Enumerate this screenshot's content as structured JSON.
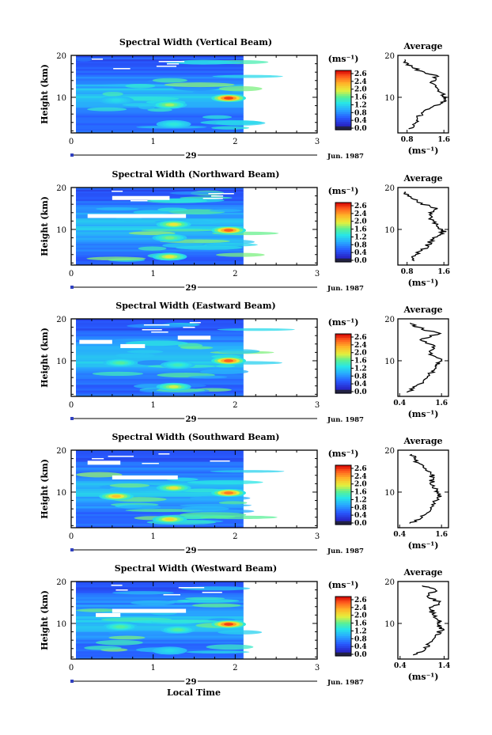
{
  "figure": {
    "xlabel": "Local Time",
    "month_label": "Jun. 1987",
    "day_label": "29"
  },
  "chart_data": [
    {
      "type": "heatmap",
      "title": "Spectral Width (Vertical Beam)",
      "ylabel": "Height (km)",
      "x_ticks": [
        "0",
        "1",
        "2",
        "3"
      ],
      "y_ticks": [
        "20",
        "10"
      ],
      "xlim": [
        0,
        3
      ],
      "ylim": [
        1.5,
        20
      ],
      "data_xlim": [
        0,
        2.1
      ],
      "colorbar": {
        "label": "(ms⁻¹)",
        "ticks": [
          "2.6",
          "2.4",
          "2.0",
          "1.6",
          "1.2",
          "0.8",
          "0.4",
          "0.0"
        ],
        "range": [
          0.0,
          2.8
        ]
      },
      "features": [
        {
          "x": 1.92,
          "y": 9.8,
          "value": 2.6
        },
        {
          "x": 1.2,
          "y": 8.2,
          "value": 1.7
        },
        {
          "x": 1.25,
          "y": 3.6,
          "value": 1.3
        },
        {
          "x": 0.55,
          "y": 9.3,
          "value": 1.2
        }
      ],
      "gaps": [],
      "average": {
        "title": "Average",
        "xlabel": "(ms⁻¹)",
        "x_ticks": [
          "0.8",
          "1.6"
        ],
        "xlim": [
          0.6,
          1.7
        ],
        "y_ticks": [
          "20",
          "10"
        ],
        "height": [
          2.5,
          4,
          5.5,
          7,
          8.5,
          9.5,
          10.5,
          12,
          13.5,
          15,
          16.5,
          18,
          19
        ],
        "value": [
          0.9,
          1.0,
          1.05,
          1.25,
          1.55,
          1.65,
          1.6,
          1.4,
          1.35,
          1.45,
          1.05,
          0.8,
          0.75
        ]
      }
    },
    {
      "type": "heatmap",
      "title": "Spectral Width (Northward Beam)",
      "ylabel": "Height (km)",
      "x_ticks": [
        "0",
        "1",
        "2",
        "3"
      ],
      "y_ticks": [
        "20",
        "10"
      ],
      "xlim": [
        0,
        3
      ],
      "ylim": [
        1.5,
        20
      ],
      "data_xlim": [
        0,
        2.1
      ],
      "colorbar": {
        "label": "(ms⁻¹)",
        "ticks": [
          "2.6",
          "2.4",
          "2.0",
          "1.6",
          "1.2",
          "0.8",
          "0.4",
          "0.0"
        ],
        "range": [
          0.0,
          2.8
        ]
      },
      "features": [
        {
          "x": 1.92,
          "y": 9.8,
          "value": 2.5
        },
        {
          "x": 1.25,
          "y": 11.2,
          "value": 1.9
        },
        {
          "x": 1.2,
          "y": 3.5,
          "value": 1.9
        },
        {
          "x": 1.2,
          "y": 8.0,
          "value": 1.6
        }
      ],
      "gaps": [
        {
          "x0": 0.2,
          "x1": 1.4,
          "y": 13.2
        },
        {
          "x0": 0.5,
          "x1": 1.2,
          "y": 17.5
        }
      ],
      "average": {
        "title": "Average",
        "xlabel": "(ms⁻¹)",
        "x_ticks": [
          "0.8",
          "1.6"
        ],
        "xlim": [
          0.6,
          1.7
        ],
        "y_ticks": [
          "20",
          "10"
        ],
        "height": [
          2.5,
          4,
          5.5,
          7,
          8.5,
          9.5,
          10.5,
          12,
          13.5,
          15,
          16.5,
          18,
          19
        ],
        "value": [
          0.9,
          1.0,
          1.2,
          1.3,
          1.45,
          1.6,
          1.5,
          1.35,
          1.3,
          1.4,
          1.05,
          0.85,
          0.75
        ]
      }
    },
    {
      "type": "heatmap",
      "title": "Spectral Width (Eastward Beam)",
      "ylabel": "Height (km)",
      "x_ticks": [
        "0",
        "1",
        "2",
        "3"
      ],
      "y_ticks": [
        "20",
        "10"
      ],
      "xlim": [
        0,
        3
      ],
      "ylim": [
        1.5,
        20
      ],
      "data_xlim": [
        0,
        2.1
      ],
      "colorbar": {
        "label": "(ms⁻¹)",
        "ticks": [
          "2.6",
          "2.4",
          "2.0",
          "1.6",
          "1.2",
          "0.8",
          "0.4",
          "0.0"
        ],
        "range": [
          0.0,
          2.8
        ]
      },
      "features": [
        {
          "x": 1.92,
          "y": 10.0,
          "value": 2.5
        },
        {
          "x": 1.25,
          "y": 3.8,
          "value": 1.8
        },
        {
          "x": 0.6,
          "y": 9.5,
          "value": 1.5
        },
        {
          "x": 1.3,
          "y": 9.0,
          "value": 1.4
        }
      ],
      "gaps": [
        {
          "x0": 0.6,
          "x1": 0.9,
          "y": 13.5
        },
        {
          "x0": 1.3,
          "x1": 1.7,
          "y": 15.5
        },
        {
          "x0": 0.1,
          "x1": 0.5,
          "y": 14.5
        }
      ],
      "average": {
        "title": "Average",
        "xlabel": "(ms⁻¹)",
        "x_ticks": [
          "0.4",
          "1.6"
        ],
        "xlim": [
          0.35,
          1.8
        ],
        "y_ticks": [
          "20",
          "10"
        ],
        "height": [
          2.5,
          4,
          5.5,
          7,
          8.5,
          9.5,
          10.5,
          12,
          13.5,
          15,
          16.5,
          18,
          19
        ],
        "value": [
          0.6,
          0.9,
          1.15,
          1.3,
          1.45,
          1.5,
          1.55,
          1.2,
          1.4,
          1.0,
          1.5,
          0.9,
          0.7
        ]
      }
    },
    {
      "type": "heatmap",
      "title": "Spectral Width (Southward Beam)",
      "ylabel": "Height (km)",
      "x_ticks": [
        "0",
        "1",
        "2",
        "3"
      ],
      "y_ticks": [
        "20",
        "10"
      ],
      "xlim": [
        0,
        3
      ],
      "ylim": [
        1.5,
        20
      ],
      "data_xlim": [
        0,
        2.1
      ],
      "colorbar": {
        "label": "(ms⁻¹)",
        "ticks": [
          "2.6",
          "2.4",
          "2.0",
          "1.6",
          "1.2",
          "0.8",
          "0.4",
          "0.0"
        ],
        "range": [
          0.0,
          2.8
        ]
      },
      "features": [
        {
          "x": 1.92,
          "y": 9.8,
          "value": 2.4
        },
        {
          "x": 0.55,
          "y": 9.0,
          "value": 2.1
        },
        {
          "x": 1.25,
          "y": 11.0,
          "value": 1.9
        },
        {
          "x": 1.2,
          "y": 3.5,
          "value": 2.0
        }
      ],
      "gaps": [
        {
          "x0": 0.5,
          "x1": 1.3,
          "y": 13.5
        },
        {
          "x0": 0.2,
          "x1": 0.6,
          "y": 17.0
        }
      ],
      "average": {
        "title": "Average",
        "xlabel": "(ms⁻¹)",
        "x_ticks": [
          "0.4",
          "1.6"
        ],
        "xlim": [
          0.35,
          1.8
        ],
        "y_ticks": [
          "20",
          "10"
        ],
        "height": [
          2.5,
          4,
          5.5,
          7,
          8.5,
          9.5,
          10.5,
          12,
          13.5,
          15,
          16.5,
          18,
          19
        ],
        "value": [
          0.7,
          1.0,
          1.2,
          1.35,
          1.5,
          1.55,
          1.45,
          1.3,
          1.35,
          1.25,
          1.0,
          0.8,
          0.75
        ]
      }
    },
    {
      "type": "heatmap",
      "title": "Spectral Width (Westward Beam)",
      "ylabel": "Height (km)",
      "x_ticks": [
        "0",
        "1",
        "2",
        "3"
      ],
      "y_ticks": [
        "20",
        "10"
      ],
      "xlim": [
        0,
        3
      ],
      "ylim": [
        1.5,
        20
      ],
      "data_xlim": [
        0,
        2.1
      ],
      "colorbar": {
        "label": "(ms⁻¹)",
        "ticks": [
          "2.6",
          "2.4",
          "2.0",
          "1.6",
          "1.2",
          "0.8",
          "0.4",
          "0.0"
        ],
        "range": [
          0.0,
          2.8
        ]
      },
      "features": [
        {
          "x": 1.92,
          "y": 9.8,
          "value": 2.6
        },
        {
          "x": 1.3,
          "y": 8.5,
          "value": 1.5
        },
        {
          "x": 0.6,
          "y": 9.2,
          "value": 1.5
        },
        {
          "x": 1.2,
          "y": 3.5,
          "value": 1.2
        }
      ],
      "gaps": [
        {
          "x0": 0.5,
          "x1": 1.4,
          "y": 13.0
        },
        {
          "x0": 0.3,
          "x1": 0.6,
          "y": 12.0
        }
      ],
      "average": {
        "title": "Average",
        "xlabel": "(ms⁻¹)",
        "x_ticks": [
          "0.4",
          "1.4"
        ],
        "xlim": [
          0.35,
          1.5
        ],
        "y_ticks": [
          "20",
          "10"
        ],
        "height": [
          2.5,
          4,
          5.5,
          7,
          8.5,
          9.5,
          10.5,
          12,
          13.5,
          15,
          16.5,
          18,
          19
        ],
        "value": [
          0.7,
          1.0,
          1.05,
          1.2,
          1.35,
          1.25,
          1.3,
          1.15,
          1.1,
          1.3,
          1.0,
          1.2,
          0.9
        ]
      }
    }
  ]
}
